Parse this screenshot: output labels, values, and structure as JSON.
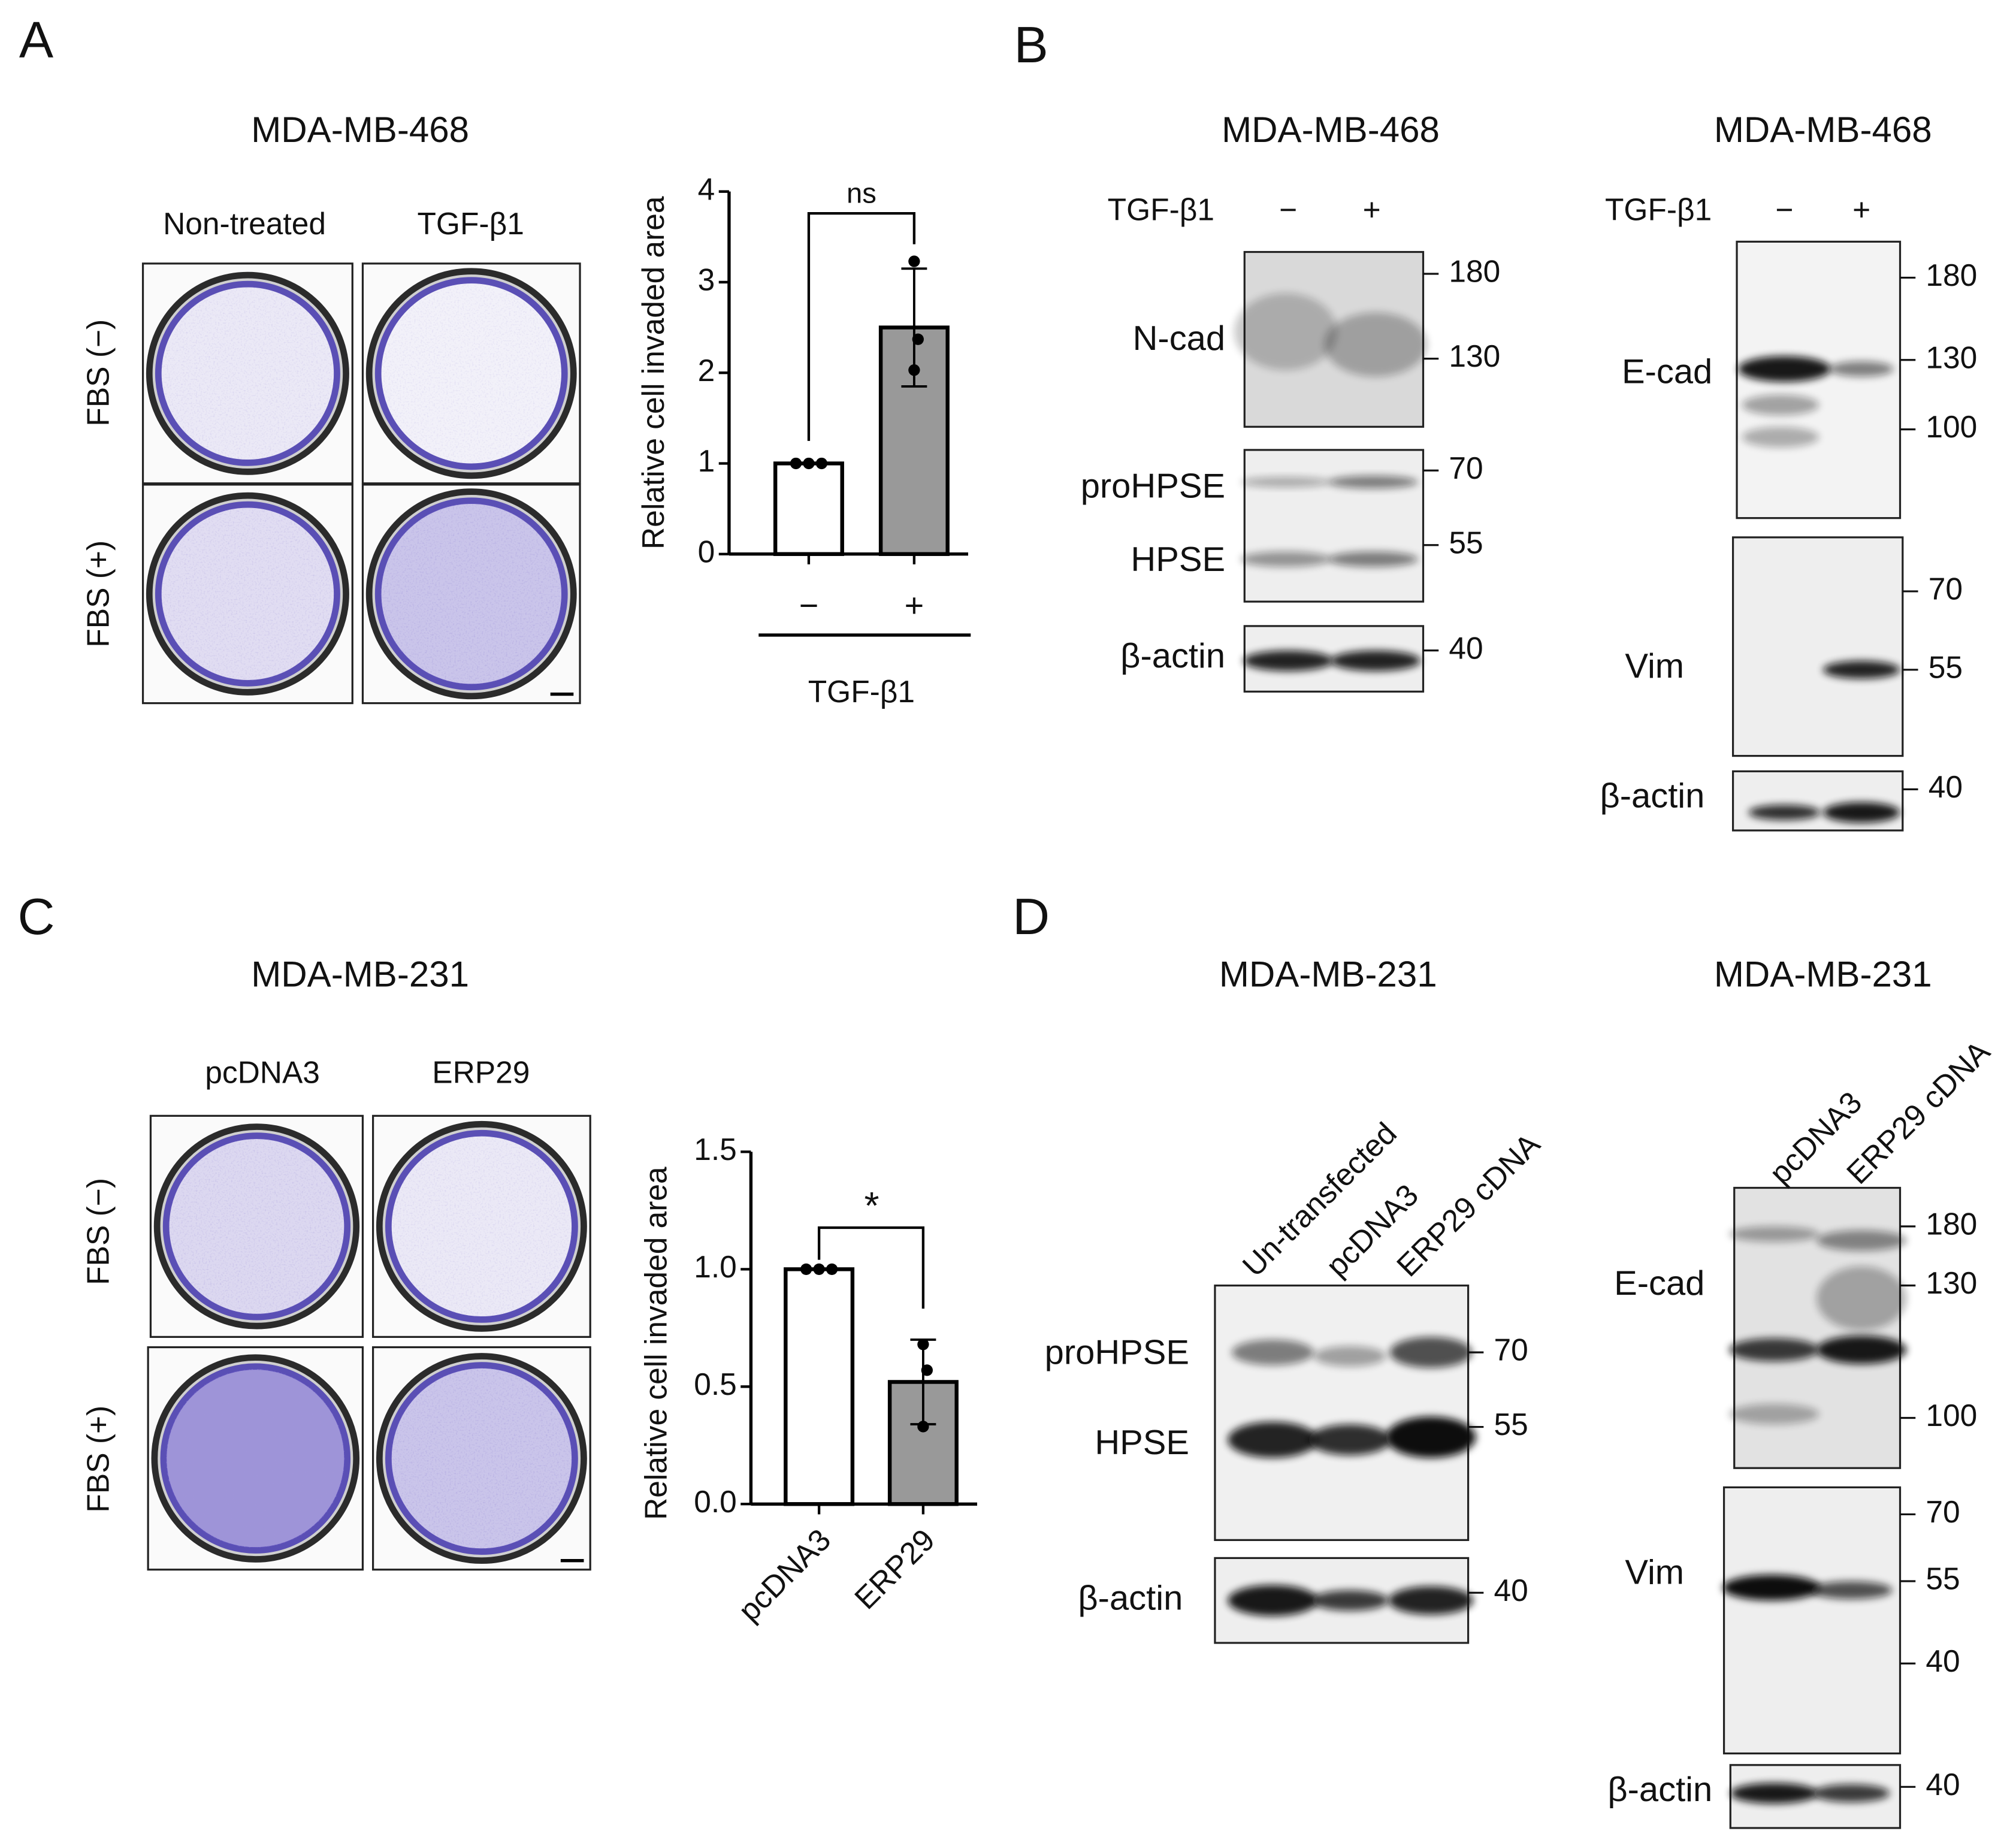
{
  "panels": {
    "A": {
      "letter": "A",
      "title": "MDA-MB-468",
      "columns": [
        "Non-treated",
        "TGF-β1"
      ],
      "rows": [
        "FBS (−)",
        "FBS (+)"
      ]
    },
    "B": {
      "letter": "B",
      "blots": [
        {
          "title": "MDA-MB-468",
          "treatment": "TGF-β1",
          "lanes": [
            "−",
            "+"
          ],
          "proteins": [
            "N-cad",
            "proHPSE",
            "HPSE",
            "β-actin"
          ],
          "markers": [
            180,
            130,
            70,
            55,
            40
          ]
        },
        {
          "title": "MDA-MB-468",
          "treatment": "TGF-β1",
          "lanes": [
            "−",
            "+"
          ],
          "proteins": [
            "E-cad",
            "Vim",
            "β-actin"
          ],
          "markers": [
            180,
            130,
            100,
            70,
            55,
            40
          ]
        }
      ]
    },
    "C": {
      "letter": "C",
      "title": "MDA-MB-231",
      "columns": [
        "pcDNA3",
        "ERP29"
      ],
      "rows": [
        "FBS (−)",
        "FBS (+)"
      ]
    },
    "D": {
      "letter": "D",
      "blots": [
        {
          "title": "MDA-MB-231",
          "lanes": [
            "Un-transfected",
            "pcDNA3",
            "ERP29 cDNA"
          ],
          "proteins": [
            "proHPSE",
            "HPSE",
            "β-actin"
          ],
          "markers": [
            70,
            55,
            40
          ]
        },
        {
          "title": "MDA-MB-231",
          "lanes": [
            "pcDNA3",
            "ERP29 cDNA"
          ],
          "proteins": [
            "E-cad",
            "Vim",
            "β-actin"
          ],
          "markers": [
            180,
            130,
            100,
            70,
            55,
            40,
            40
          ]
        }
      ]
    }
  },
  "chart_data": [
    {
      "type": "bar",
      "ylabel": "Relative cell invaded area",
      "xlabel": "TGF-β1",
      "annotation": "ns",
      "categories": [
        "−",
        "+"
      ],
      "values": [
        1,
        2.5
      ],
      "errors": [
        0,
        0.65
      ],
      "points": [
        [
          1,
          1,
          1
        ],
        [
          3.23,
          2.37,
          2.03
        ]
      ],
      "colors": [
        "#ffffff",
        "#999999"
      ],
      "ylim": [
        0,
        4
      ],
      "yticks": [
        0,
        1,
        2,
        3,
        4
      ]
    },
    {
      "type": "bar",
      "ylabel": "Relative cell invaded area",
      "annotation": "*",
      "categories": [
        "pcDNA3",
        "ERP29"
      ],
      "values": [
        1,
        0.52
      ],
      "errors": [
        0,
        0.18
      ],
      "points": [
        [
          1,
          1,
          1
        ],
        [
          0.68,
          0.57,
          0.33
        ]
      ],
      "colors": [
        "#ffffff",
        "#999999"
      ],
      "ylim": [
        0,
        1.5
      ],
      "yticks": [
        {
          "value": 0,
          "label": "0.0"
        },
        0.5,
        {
          "value": 1,
          "label": "1.0"
        },
        1.5
      ]
    }
  ]
}
